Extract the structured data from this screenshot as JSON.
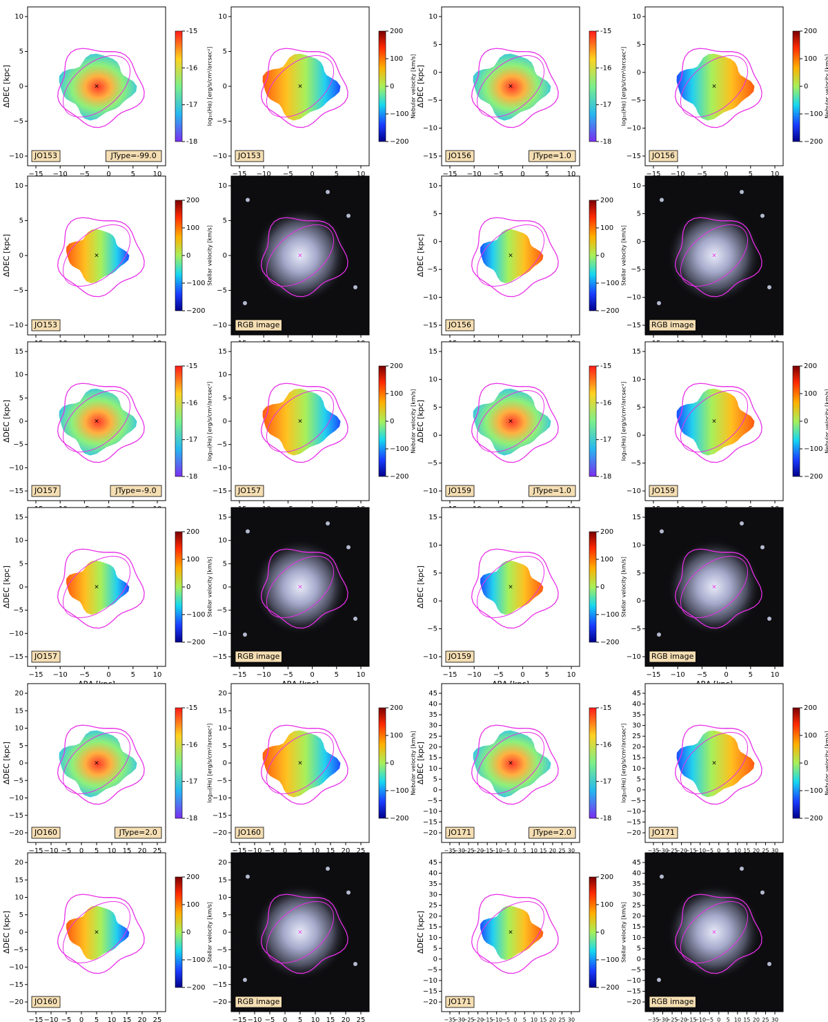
{
  "figure": {
    "axis_labels": {
      "x": "ΔRA [kpc]",
      "y": "ΔDEC [kpc]"
    },
    "colorbars": {
      "halpha": {
        "label": "log₁₀(Hα) [erg/s/cm²/arcsec²]",
        "ticks": [
          "-15",
          "-16",
          "-17",
          "-18"
        ]
      },
      "nebular": {
        "label": "Nebular velocity [km/s]",
        "ticks": [
          "200",
          "100",
          "0",
          "−100",
          "−200"
        ]
      },
      "stellar": {
        "label": "Stellar velocity [km/s]",
        "ticks": [
          "200",
          "100",
          "0",
          "−100",
          "−200"
        ]
      }
    },
    "rgb_label": "RGB image",
    "groups": [
      {
        "galaxy": "JO153",
        "jtype": "JType=-99.0",
        "xticks": [
          "−15",
          "−10",
          "−5",
          "0",
          "5",
          "10"
        ],
        "yticks": [
          "10",
          "5",
          "0",
          "−5",
          "−10"
        ]
      },
      {
        "galaxy": "JO156",
        "jtype": "JType=1.0",
        "xticks": [
          "−15",
          "−10",
          "−5",
          "0",
          "5",
          "10"
        ],
        "yticks": [
          "10",
          "5",
          "0",
          "−5",
          "−10",
          "−15"
        ]
      },
      {
        "galaxy": "JO157",
        "jtype": "JType=-9.0",
        "xticks": [
          "−15",
          "−10",
          "−5",
          "0",
          "5",
          "10"
        ],
        "yticks": [
          "15",
          "10",
          "5",
          "0",
          "−5",
          "−10",
          "−15"
        ]
      },
      {
        "galaxy": "JO159",
        "jtype": "JType=1.0",
        "xticks": [
          "−15",
          "−10",
          "−5",
          "0",
          "5",
          "10"
        ],
        "yticks": [
          "15",
          "10",
          "5",
          "0",
          "−5",
          "−10"
        ]
      },
      {
        "galaxy": "JO160",
        "jtype": "JType=2.0",
        "xticks": [
          "−15",
          "−10",
          "−5",
          "0",
          "5",
          "10",
          "15",
          "20",
          "25"
        ],
        "yticks": [
          "20",
          "15",
          "10",
          "5",
          "0",
          "−5",
          "−10",
          "−15",
          "−20"
        ]
      },
      {
        "galaxy": "JO171",
        "jtype": "JType=2.0",
        "xticks": [
          "−35",
          "−30",
          "−25",
          "−20",
          "−15",
          "−10",
          "−5",
          "0",
          "5",
          "10",
          "15",
          "20",
          "25",
          "30"
        ],
        "yticks": [
          "45",
          "40",
          "35",
          "30",
          "25",
          "20",
          "15",
          "10",
          "5",
          "0",
          "−5",
          "−10",
          "−15",
          "−20"
        ]
      }
    ]
  },
  "colors": {
    "contour": "#e82ee8",
    "label_box": "#f5deb3"
  }
}
